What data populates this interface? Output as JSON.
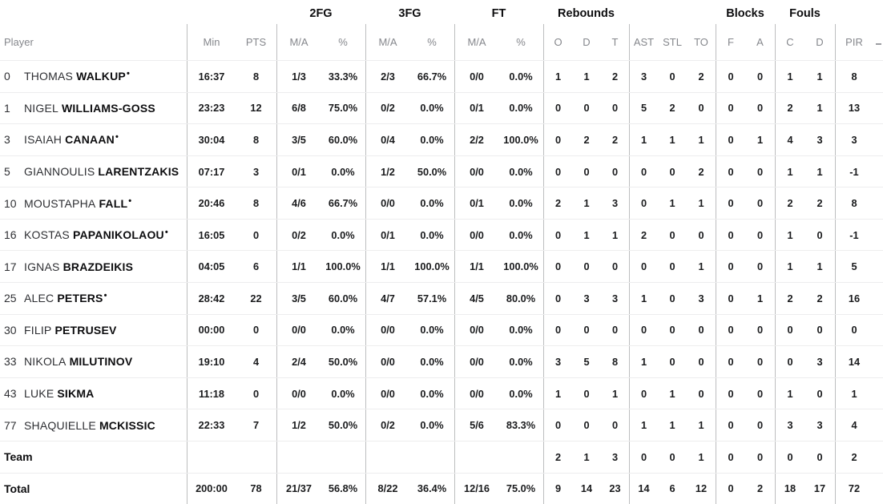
{
  "table": {
    "group_headers": {
      "fg2": "2FG",
      "fg3": "3FG",
      "ft": "FT",
      "rebounds": "Rebounds",
      "blocks": "Blocks",
      "fouls": "Fouls"
    },
    "headers": {
      "player": "Player",
      "min": "Min",
      "pts": "PTS",
      "fg2_ma": "M/A",
      "fg2_pct": "%",
      "fg3_ma": "M/A",
      "fg3_pct": "%",
      "ft_ma": "M/A",
      "ft_pct": "%",
      "reb_o": "O",
      "reb_d": "D",
      "reb_t": "T",
      "ast": "AST",
      "stl": "STL",
      "to": "TO",
      "blk_f": "F",
      "blk_a": "A",
      "foul_c": "C",
      "foul_d": "D",
      "pir": "PIR"
    },
    "rows": [
      {
        "number": "0",
        "first": "THOMAS",
        "last": "WALKUP",
        "starter": true,
        "min": "16:37",
        "pts": "8",
        "fg2_ma": "1/3",
        "fg2_pct": "33.3%",
        "fg3_ma": "2/3",
        "fg3_pct": "66.7%",
        "ft_ma": "0/0",
        "ft_pct": "0.0%",
        "reb_o": "1",
        "reb_d": "1",
        "reb_t": "2",
        "ast": "3",
        "stl": "0",
        "to": "2",
        "blk_f": "0",
        "blk_a": "0",
        "foul_c": "1",
        "foul_d": "1",
        "pir": "8"
      },
      {
        "number": "1",
        "first": "NIGEL",
        "last": "WILLIAMS-GOSS",
        "starter": false,
        "min": "23:23",
        "pts": "12",
        "fg2_ma": "6/8",
        "fg2_pct": "75.0%",
        "fg3_ma": "0/2",
        "fg3_pct": "0.0%",
        "ft_ma": "0/1",
        "ft_pct": "0.0%",
        "reb_o": "0",
        "reb_d": "0",
        "reb_t": "0",
        "ast": "5",
        "stl": "2",
        "to": "0",
        "blk_f": "0",
        "blk_a": "0",
        "foul_c": "2",
        "foul_d": "1",
        "pir": "13"
      },
      {
        "number": "3",
        "first": "ISAIAH",
        "last": "CANAAN",
        "starter": true,
        "min": "30:04",
        "pts": "8",
        "fg2_ma": "3/5",
        "fg2_pct": "60.0%",
        "fg3_ma": "0/4",
        "fg3_pct": "0.0%",
        "ft_ma": "2/2",
        "ft_pct": "100.0%",
        "reb_o": "0",
        "reb_d": "2",
        "reb_t": "2",
        "ast": "1",
        "stl": "1",
        "to": "1",
        "blk_f": "0",
        "blk_a": "1",
        "foul_c": "4",
        "foul_d": "3",
        "pir": "3"
      },
      {
        "number": "5",
        "first": "GIANNOULIS",
        "last": "LARENTZAKIS",
        "starter": false,
        "min": "07:17",
        "pts": "3",
        "fg2_ma": "0/1",
        "fg2_pct": "0.0%",
        "fg3_ma": "1/2",
        "fg3_pct": "50.0%",
        "ft_ma": "0/0",
        "ft_pct": "0.0%",
        "reb_o": "0",
        "reb_d": "0",
        "reb_t": "0",
        "ast": "0",
        "stl": "0",
        "to": "2",
        "blk_f": "0",
        "blk_a": "0",
        "foul_c": "1",
        "foul_d": "1",
        "pir": "-1"
      },
      {
        "number": "10",
        "first": "MOUSTAPHA",
        "last": "FALL",
        "starter": true,
        "min": "20:46",
        "pts": "8",
        "fg2_ma": "4/6",
        "fg2_pct": "66.7%",
        "fg3_ma": "0/0",
        "fg3_pct": "0.0%",
        "ft_ma": "0/1",
        "ft_pct": "0.0%",
        "reb_o": "2",
        "reb_d": "1",
        "reb_t": "3",
        "ast": "0",
        "stl": "1",
        "to": "1",
        "blk_f": "0",
        "blk_a": "0",
        "foul_c": "2",
        "foul_d": "2",
        "pir": "8"
      },
      {
        "number": "16",
        "first": "KOSTAS",
        "last": "PAPANIKOLAOU",
        "starter": true,
        "min": "16:05",
        "pts": "0",
        "fg2_ma": "0/2",
        "fg2_pct": "0.0%",
        "fg3_ma": "0/1",
        "fg3_pct": "0.0%",
        "ft_ma": "0/0",
        "ft_pct": "0.0%",
        "reb_o": "0",
        "reb_d": "1",
        "reb_t": "1",
        "ast": "2",
        "stl": "0",
        "to": "0",
        "blk_f": "0",
        "blk_a": "0",
        "foul_c": "1",
        "foul_d": "0",
        "pir": "-1"
      },
      {
        "number": "17",
        "first": "IGNAS",
        "last": "BRAZDEIKIS",
        "starter": false,
        "min": "04:05",
        "pts": "6",
        "fg2_ma": "1/1",
        "fg2_pct": "100.0%",
        "fg3_ma": "1/1",
        "fg3_pct": "100.0%",
        "ft_ma": "1/1",
        "ft_pct": "100.0%",
        "reb_o": "0",
        "reb_d": "0",
        "reb_t": "0",
        "ast": "0",
        "stl": "0",
        "to": "1",
        "blk_f": "0",
        "blk_a": "0",
        "foul_c": "1",
        "foul_d": "1",
        "pir": "5"
      },
      {
        "number": "25",
        "first": "ALEC",
        "last": "PETERS",
        "starter": true,
        "min": "28:42",
        "pts": "22",
        "fg2_ma": "3/5",
        "fg2_pct": "60.0%",
        "fg3_ma": "4/7",
        "fg3_pct": "57.1%",
        "ft_ma": "4/5",
        "ft_pct": "80.0%",
        "reb_o": "0",
        "reb_d": "3",
        "reb_t": "3",
        "ast": "1",
        "stl": "0",
        "to": "3",
        "blk_f": "0",
        "blk_a": "1",
        "foul_c": "2",
        "foul_d": "2",
        "pir": "16"
      },
      {
        "number": "30",
        "first": "FILIP",
        "last": "PETRUSEV",
        "starter": false,
        "min": "00:00",
        "pts": "0",
        "fg2_ma": "0/0",
        "fg2_pct": "0.0%",
        "fg3_ma": "0/0",
        "fg3_pct": "0.0%",
        "ft_ma": "0/0",
        "ft_pct": "0.0%",
        "reb_o": "0",
        "reb_d": "0",
        "reb_t": "0",
        "ast": "0",
        "stl": "0",
        "to": "0",
        "blk_f": "0",
        "blk_a": "0",
        "foul_c": "0",
        "foul_d": "0",
        "pir": "0"
      },
      {
        "number": "33",
        "first": "NIKOLA",
        "last": "MILUTINOV",
        "starter": false,
        "min": "19:10",
        "pts": "4",
        "fg2_ma": "2/4",
        "fg2_pct": "50.0%",
        "fg3_ma": "0/0",
        "fg3_pct": "0.0%",
        "ft_ma": "0/0",
        "ft_pct": "0.0%",
        "reb_o": "3",
        "reb_d": "5",
        "reb_t": "8",
        "ast": "1",
        "stl": "0",
        "to": "0",
        "blk_f": "0",
        "blk_a": "0",
        "foul_c": "0",
        "foul_d": "3",
        "pir": "14"
      },
      {
        "number": "43",
        "first": "LUKE",
        "last": "SIKMA",
        "starter": false,
        "min": "11:18",
        "pts": "0",
        "fg2_ma": "0/0",
        "fg2_pct": "0.0%",
        "fg3_ma": "0/0",
        "fg3_pct": "0.0%",
        "ft_ma": "0/0",
        "ft_pct": "0.0%",
        "reb_o": "1",
        "reb_d": "0",
        "reb_t": "1",
        "ast": "0",
        "stl": "1",
        "to": "0",
        "blk_f": "0",
        "blk_a": "0",
        "foul_c": "1",
        "foul_d": "0",
        "pir": "1"
      },
      {
        "number": "77",
        "first": "SHAQUIELLE",
        "last": "MCKISSIC",
        "starter": false,
        "min": "22:33",
        "pts": "7",
        "fg2_ma": "1/2",
        "fg2_pct": "50.0%",
        "fg3_ma": "0/2",
        "fg3_pct": "0.0%",
        "ft_ma": "5/6",
        "ft_pct": "83.3%",
        "reb_o": "0",
        "reb_d": "0",
        "reb_t": "0",
        "ast": "1",
        "stl": "1",
        "to": "1",
        "blk_f": "0",
        "blk_a": "0",
        "foul_c": "3",
        "foul_d": "3",
        "pir": "4"
      },
      {
        "label": "Team",
        "min": "",
        "pts": "",
        "fg2_ma": "",
        "fg2_pct": "",
        "fg3_ma": "",
        "fg3_pct": "",
        "ft_ma": "",
        "ft_pct": "",
        "reb_o": "2",
        "reb_d": "1",
        "reb_t": "3",
        "ast": "0",
        "stl": "0",
        "to": "1",
        "blk_f": "0",
        "blk_a": "0",
        "foul_c": "0",
        "foul_d": "0",
        "pir": "2"
      },
      {
        "label": "Total",
        "min": "200:00",
        "pts": "78",
        "fg2_ma": "21/37",
        "fg2_pct": "56.8%",
        "fg3_ma": "8/22",
        "fg3_pct": "36.4%",
        "ft_ma": "12/16",
        "ft_pct": "75.0%",
        "reb_o": "9",
        "reb_d": "14",
        "reb_t": "23",
        "ast": "14",
        "stl": "6",
        "to": "12",
        "blk_f": "0",
        "blk_a": "2",
        "foul_c": "18",
        "foul_d": "17",
        "pir": "72"
      }
    ]
  }
}
